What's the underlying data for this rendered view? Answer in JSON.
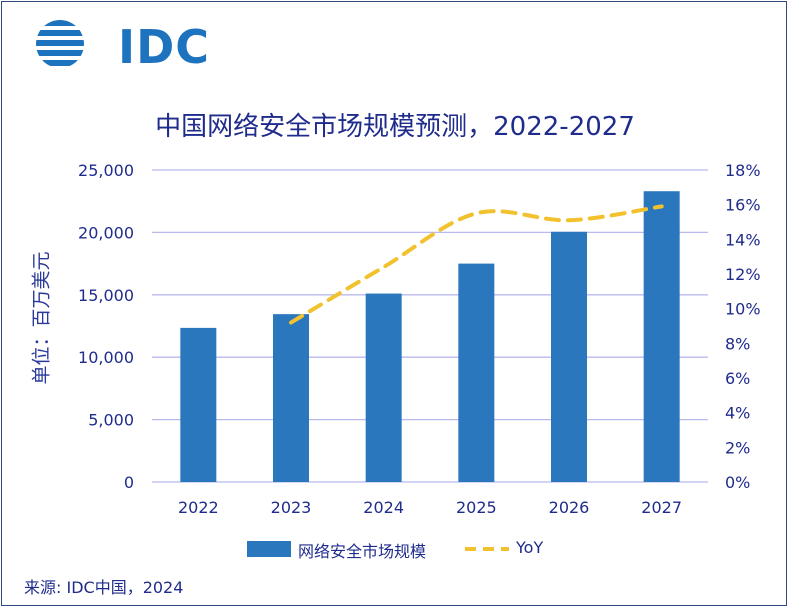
{
  "logo": {
    "text": "IDC"
  },
  "chart_data": {
    "type": "bar",
    "title": "中国网络安全市场规模预测，2022-2027",
    "categories": [
      "2022",
      "2023",
      "2024",
      "2025",
      "2026",
      "2027"
    ],
    "series": [
      {
        "name": "网络安全市场规模",
        "type": "bar",
        "axis": "left",
        "values": [
          12350,
          13450,
          15100,
          17500,
          20050,
          23300
        ]
      },
      {
        "name": "YoY",
        "type": "line",
        "style": "dashed",
        "axis": "right",
        "values": [
          null,
          9.2,
          12.4,
          15.5,
          15.1,
          15.9
        ]
      }
    ],
    "ylabel": "单位：百万美元",
    "ylim": [
      0,
      25000
    ],
    "yticks": [
      "0",
      "5,000",
      "10,000",
      "15,000",
      "20,000",
      "25,000"
    ],
    "y2lim": [
      0,
      18
    ],
    "y2ticks": [
      "0%",
      "2%",
      "4%",
      "6%",
      "8%",
      "10%",
      "12%",
      "14%",
      "16%",
      "18%"
    ],
    "grid": true,
    "legend_position": "bottom",
    "colors": {
      "bar": "#2a77be",
      "line": "#f2c12e",
      "text": "#1f2c8c",
      "grid": "#b9b9ee"
    }
  },
  "source": "来源: IDC中国，2024"
}
